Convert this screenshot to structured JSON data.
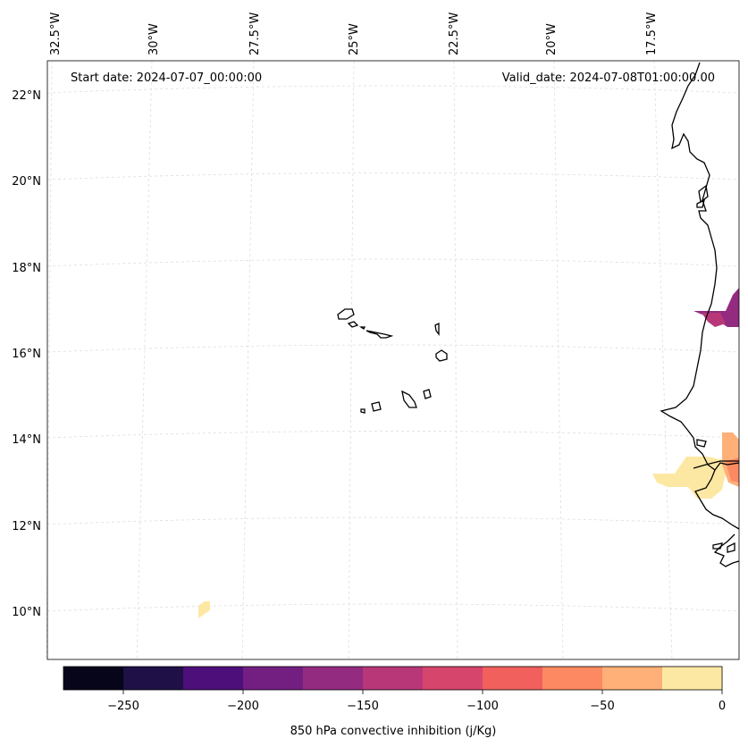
{
  "map": {
    "start_date": "Start date: 2024-07-07_00:00:00",
    "valid_date": "Valid_date: 2024-07-08T01:00:00.00",
    "longitude_labels": [
      "32.5°W",
      "30°W",
      "27.5°W",
      "25°W",
      "22.5°W",
      "20°W",
      "17.5°W"
    ],
    "latitude_labels": [
      "22°N",
      "20°N",
      "18°N",
      "16°N",
      "14°N",
      "12°N",
      "10°N"
    ]
  },
  "colorbar": {
    "label": "850 hPa convective inhibition (j/Kg)",
    "tick_labels": [
      "−250",
      "−200",
      "−150",
      "−100",
      "−50",
      "0"
    ],
    "range": [
      -275,
      0
    ],
    "colors": [
      "#06051a",
      "#1f1147",
      "#4d0f79",
      "#721f81",
      "#932b80",
      "#b73779",
      "#d6456c",
      "#f1605d",
      "#fc8961",
      "#feb078",
      "#fde8a3"
    ]
  },
  "colors": {
    "coastline": "#000000",
    "gridline": "#dddddd"
  }
}
